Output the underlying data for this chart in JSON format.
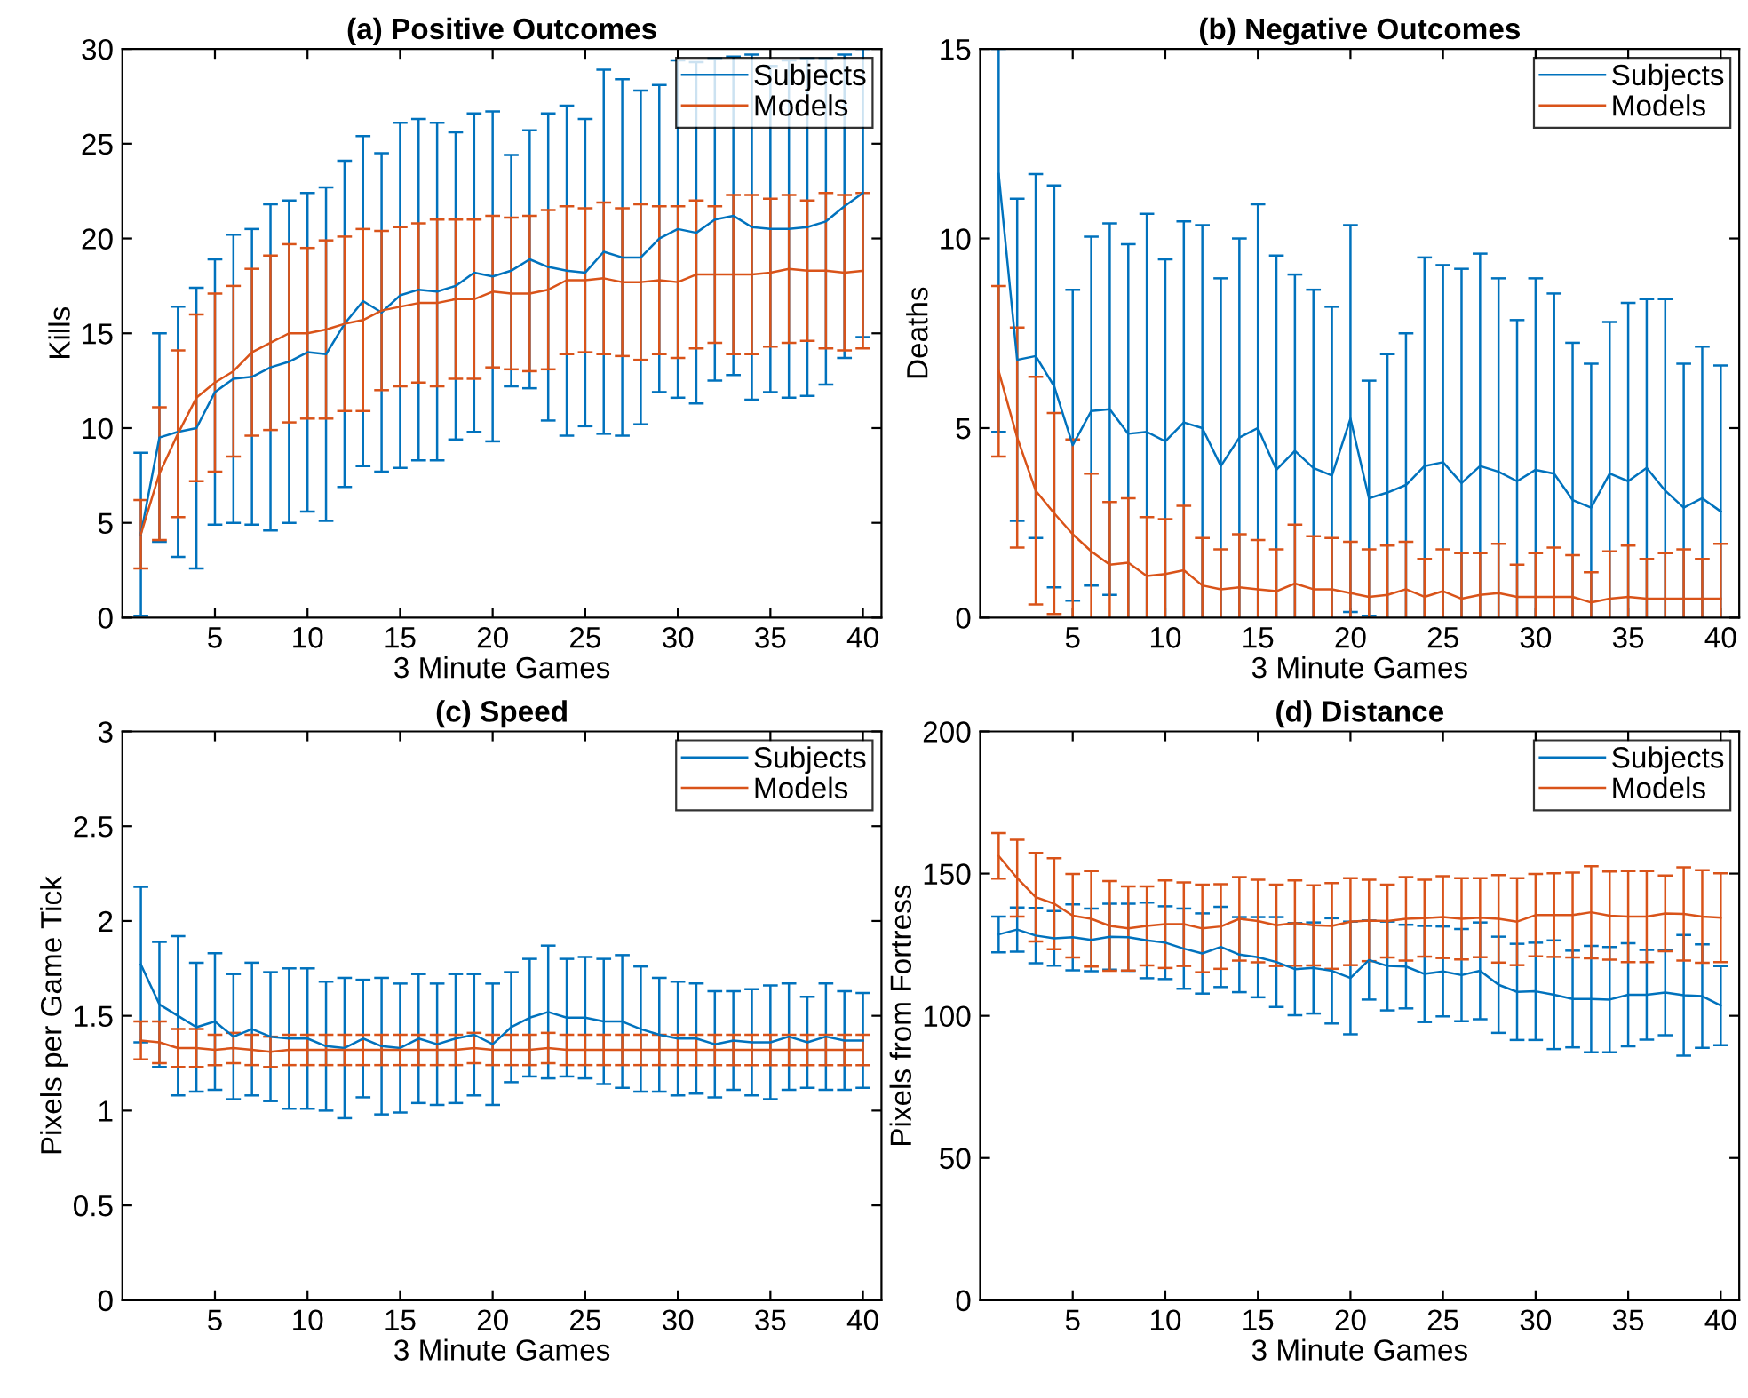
{
  "chart_data": [
    {
      "type": "line",
      "title": "(a) Positive Outcomes",
      "xlabel": "3 Minute Games",
      "ylabel": "Kills",
      "legend": "top right",
      "xlim": [
        0,
        41
      ],
      "xticks": [
        5,
        10,
        15,
        20,
        25,
        30,
        35,
        40
      ],
      "ylim": [
        0,
        30
      ],
      "yticks": [
        0,
        5,
        10,
        15,
        20,
        25,
        30
      ],
      "x": [
        1,
        2,
        3,
        4,
        5,
        6,
        7,
        8,
        9,
        10,
        11,
        12,
        13,
        14,
        15,
        16,
        17,
        18,
        19,
        20,
        21,
        22,
        23,
        24,
        25,
        26,
        27,
        28,
        29,
        30,
        31,
        32,
        33,
        34,
        35,
        36,
        37,
        38,
        39,
        40
      ],
      "series": [
        {
          "name": "Subjects",
          "color": "#0072bd",
          "values": [
            4.4,
            9.5,
            9.8,
            10.0,
            11.9,
            12.6,
            12.7,
            13.2,
            13.5,
            14.0,
            13.9,
            15.5,
            16.7,
            16.1,
            17.0,
            17.3,
            17.2,
            17.5,
            18.2,
            18.0,
            18.3,
            18.9,
            18.5,
            18.3,
            18.2,
            19.3,
            19.0,
            19.0,
            20.0,
            20.5,
            20.3,
            21.0,
            21.2,
            20.6,
            20.5,
            20.5,
            20.6,
            20.9,
            21.7,
            22.4
          ],
          "errors": [
            4.3,
            5.5,
            6.6,
            7.4,
            7.0,
            7.6,
            7.8,
            8.6,
            8.5,
            8.4,
            8.8,
            8.6,
            8.7,
            8.4,
            9.1,
            9.0,
            8.9,
            8.1,
            8.4,
            8.7,
            6.1,
            6.8,
            8.1,
            8.7,
            8.1,
            9.6,
            9.4,
            8.8,
            8.1,
            8.9,
            9.0,
            8.5,
            8.4,
            9.1,
            8.6,
            8.9,
            8.9,
            8.6,
            8.0,
            7.6
          ]
        },
        {
          "name": "Models",
          "color": "#d95319",
          "values": [
            4.4,
            7.6,
            9.7,
            11.6,
            12.4,
            13.0,
            14.0,
            14.5,
            15.0,
            15.0,
            15.2,
            15.5,
            15.7,
            16.2,
            16.4,
            16.6,
            16.6,
            16.8,
            16.8,
            17.2,
            17.1,
            17.1,
            17.3,
            17.8,
            17.8,
            17.9,
            17.7,
            17.7,
            17.8,
            17.7,
            18.1,
            18.1,
            18.1,
            18.1,
            18.2,
            18.4,
            18.3,
            18.3,
            18.2,
            18.3
          ],
          "errors": [
            1.8,
            3.5,
            4.4,
            4.4,
            4.7,
            4.5,
            4.4,
            4.6,
            4.7,
            4.5,
            4.7,
            4.6,
            4.8,
            4.2,
            4.2,
            4.2,
            4.4,
            4.2,
            4.2,
            4.0,
            4.0,
            4.1,
            4.2,
            3.9,
            3.8,
            4.0,
            3.9,
            4.1,
            3.9,
            4.0,
            3.9,
            3.6,
            4.2,
            4.2,
            3.9,
            3.9,
            3.7,
            4.1,
            4.1,
            4.1
          ]
        }
      ]
    },
    {
      "type": "line",
      "title": "(b) Negative Outcomes",
      "xlabel": "3 Minute Games",
      "ylabel": "Deaths",
      "legend": "top right",
      "xlim": [
        0,
        41
      ],
      "xticks": [
        5,
        10,
        15,
        20,
        25,
        30,
        35,
        40
      ],
      "ylim": [
        0,
        15
      ],
      "yticks": [
        0,
        5,
        10,
        15
      ],
      "x": [
        1,
        2,
        3,
        4,
        5,
        6,
        7,
        8,
        9,
        10,
        11,
        12,
        13,
        14,
        15,
        16,
        17,
        18,
        19,
        20,
        21,
        22,
        23,
        24,
        25,
        26,
        27,
        28,
        29,
        30,
        31,
        32,
        33,
        34,
        35,
        36,
        37,
        38,
        39,
        40
      ],
      "series": [
        {
          "name": "Subjects",
          "color": "#0072bd",
          "values": [
            11.7,
            6.8,
            6.9,
            6.1,
            4.55,
            5.45,
            5.5,
            4.85,
            4.9,
            4.65,
            5.15,
            5.0,
            4.0,
            4.75,
            5.0,
            3.9,
            4.4,
            3.95,
            3.75,
            5.25,
            3.15,
            3.3,
            3.5,
            4.0,
            4.1,
            3.55,
            4.0,
            3.85,
            3.6,
            3.9,
            3.8,
            3.1,
            2.9,
            3.8,
            3.6,
            3.95,
            3.35,
            2.9,
            3.15,
            2.8
          ],
          "errors": [
            [
              4.9,
              15
            ],
            4.25,
            4.8,
            5.3,
            4.1,
            4.6,
            4.9,
            5.0,
            5.75,
            4.8,
            5.3,
            5.35,
            4.95,
            5.25,
            5.9,
            5.65,
            4.65,
            4.7,
            4.45,
            5.1,
            3.1,
            3.65,
            4.0,
            5.5,
            5.2,
            5.65,
            5.6,
            5.1,
            4.25,
            5.05,
            4.75,
            4.15,
            3.8,
            4.0,
            4.7,
            4.45,
            5.05,
            3.8,
            4.0,
            3.85
          ]
        },
        {
          "name": "Models",
          "color": "#d95319",
          "values": [
            6.5,
            4.75,
            3.35,
            2.75,
            2.2,
            1.75,
            1.4,
            1.45,
            1.1,
            1.15,
            1.25,
            0.85,
            0.75,
            0.8,
            0.75,
            0.7,
            0.9,
            0.75,
            0.75,
            0.65,
            0.55,
            0.6,
            0.75,
            0.55,
            0.7,
            0.5,
            0.6,
            0.65,
            0.55,
            0.55,
            0.55,
            0.55,
            0.4,
            0.5,
            0.55,
            0.5,
            0.5,
            0.5,
            0.5,
            0.5
          ],
          "errors": [
            2.25,
            2.9,
            3.0,
            2.65,
            2.5,
            2.05,
            1.65,
            1.7,
            1.55,
            1.45,
            1.7,
            1.25,
            1.05,
            1.4,
            1.3,
            1.1,
            1.55,
            1.4,
            1.35,
            1.35,
            1.25,
            1.3,
            1.25,
            1.0,
            1.1,
            1.2,
            1.1,
            1.3,
            0.85,
            1.15,
            1.3,
            1.1,
            0.8,
            1.25,
            1.35,
            1.05,
            1.2,
            1.3,
            1.05,
            1.45
          ]
        }
      ]
    },
    {
      "type": "line",
      "title": "(c) Speed",
      "xlabel": "3 Minute Games",
      "ylabel": "Pixels per Game Tick",
      "legend": "top right",
      "xlim": [
        0,
        41
      ],
      "xticks": [
        5,
        10,
        15,
        20,
        25,
        30,
        35,
        40
      ],
      "ylim": [
        0,
        3
      ],
      "yticks": [
        0,
        0.5,
        1,
        1.5,
        2,
        2.5,
        3
      ],
      "x": [
        1,
        2,
        3,
        4,
        5,
        6,
        7,
        8,
        9,
        10,
        11,
        12,
        13,
        14,
        15,
        16,
        17,
        18,
        19,
        20,
        21,
        22,
        23,
        24,
        25,
        26,
        27,
        28,
        29,
        30,
        31,
        32,
        33,
        34,
        35,
        36,
        37,
        38,
        39,
        40
      ],
      "series": [
        {
          "name": "Subjects",
          "color": "#0072bd",
          "values": [
            1.77,
            1.56,
            1.5,
            1.44,
            1.47,
            1.39,
            1.43,
            1.39,
            1.38,
            1.38,
            1.34,
            1.33,
            1.38,
            1.34,
            1.33,
            1.38,
            1.35,
            1.38,
            1.4,
            1.35,
            1.44,
            1.49,
            1.52,
            1.49,
            1.49,
            1.47,
            1.47,
            1.43,
            1.4,
            1.38,
            1.38,
            1.35,
            1.37,
            1.36,
            1.36,
            1.39,
            1.36,
            1.39,
            1.37,
            1.37
          ],
          "errors": [
            0.41,
            0.33,
            0.42,
            0.34,
            0.36,
            0.33,
            0.35,
            0.34,
            0.37,
            0.37,
            0.34,
            0.37,
            0.31,
            0.36,
            0.34,
            0.34,
            0.32,
            0.34,
            0.32,
            0.32,
            0.29,
            0.31,
            0.35,
            0.31,
            0.32,
            0.33,
            0.35,
            0.33,
            0.3,
            0.3,
            0.29,
            0.28,
            0.26,
            0.28,
            0.3,
            0.28,
            0.24,
            0.28,
            0.26,
            0.25
          ]
        },
        {
          "name": "Models",
          "color": "#d95319",
          "values": [
            1.37,
            1.36,
            1.33,
            1.33,
            1.32,
            1.33,
            1.32,
            1.31,
            1.32,
            1.32,
            1.32,
            1.32,
            1.32,
            1.32,
            1.32,
            1.32,
            1.32,
            1.32,
            1.33,
            1.32,
            1.32,
            1.32,
            1.33,
            1.32,
            1.32,
            1.32,
            1.32,
            1.32,
            1.32,
            1.32,
            1.32,
            1.32,
            1.32,
            1.32,
            1.32,
            1.32,
            1.32,
            1.32,
            1.32,
            1.32
          ],
          "errors": [
            0.1,
            0.11,
            0.1,
            0.1,
            0.08,
            0.08,
            0.08,
            0.08,
            0.08,
            0.08,
            0.08,
            0.08,
            0.08,
            0.08,
            0.08,
            0.08,
            0.08,
            0.08,
            0.08,
            0.08,
            0.08,
            0.08,
            0.08,
            0.08,
            0.08,
            0.08,
            0.08,
            0.08,
            0.08,
            0.08,
            0.08,
            0.08,
            0.08,
            0.08,
            0.08,
            0.08,
            0.08,
            0.08,
            0.08,
            0.08
          ]
        }
      ]
    },
    {
      "type": "line",
      "title": "(d) Distance",
      "xlabel": "3 Minute Games",
      "ylabel": "Pixels from Fortress",
      "legend": "top right",
      "xlim": [
        0,
        41
      ],
      "xticks": [
        5,
        10,
        15,
        20,
        25,
        30,
        35,
        40
      ],
      "ylim": [
        0,
        200
      ],
      "yticks": [
        0,
        50,
        100,
        150,
        200
      ],
      "x": [
        1,
        2,
        3,
        4,
        5,
        6,
        7,
        8,
        9,
        10,
        11,
        12,
        13,
        14,
        15,
        16,
        17,
        18,
        19,
        20,
        21,
        22,
        23,
        24,
        25,
        26,
        27,
        28,
        29,
        30,
        31,
        32,
        33,
        34,
        35,
        36,
        37,
        38,
        39,
        40
      ],
      "series": [
        {
          "name": "Subjects",
          "color": "#0072bd",
          "values": [
            128.6,
            130.3,
            128.2,
            127.2,
            127.6,
            126.7,
            127.8,
            127.6,
            126.5,
            125.7,
            123.6,
            121.9,
            124.2,
            121.5,
            120.6,
            118.9,
            116.4,
            116.8,
            115.8,
            113.3,
            119.6,
            117.5,
            117.3,
            114.7,
            115.6,
            114.3,
            115.8,
            110.9,
            108.4,
            108.6,
            107.4,
            105.9,
            105.9,
            105.7,
            107.4,
            107.4,
            108.2,
            107.2,
            106.9,
            103.6
          ],
          "errors": [
            6.3,
            7.8,
            9.7,
            9.6,
            11.6,
            11.0,
            11.6,
            11.8,
            13.3,
            12.8,
            14.1,
            14.1,
            14.1,
            13.2,
            14.1,
            15.8,
            16.2,
            16.0,
            18.5,
            19.8,
            13.9,
            15.6,
            14.7,
            16.9,
            15.8,
            16.2,
            17.0,
            16.9,
            16.9,
            17.1,
            19.1,
            17.0,
            18.7,
            18.5,
            18.1,
            15.8,
            15.0,
            21.2,
            18.2,
            13.9
          ]
        },
        {
          "name": "Models",
          "color": "#d95319",
          "values": [
            156.2,
            148.4,
            141.7,
            139.4,
            135.2,
            134.1,
            131.6,
            130.7,
            131.6,
            132.2,
            132.2,
            130.7,
            131.4,
            134.1,
            133.3,
            131.8,
            132.6,
            131.8,
            131.6,
            133.1,
            133.5,
            133.3,
            134.1,
            134.3,
            134.7,
            134.1,
            134.5,
            134.1,
            133.1,
            135.4,
            135.4,
            135.4,
            136.4,
            135.2,
            134.9,
            134.9,
            136.0,
            135.8,
            134.9,
            134.5
          ],
          "errors": [
            8.0,
            13.5,
            15.6,
            16.0,
            14.7,
            16.8,
            15.8,
            14.8,
            13.9,
            15.4,
            14.7,
            15.4,
            14.9,
            14.7,
            14.5,
            14.3,
            15.0,
            14.1,
            15.1,
            15.3,
            14.3,
            12.8,
            14.7,
            13.5,
            14.4,
            14.3,
            13.9,
            15.4,
            15.3,
            14.5,
            14.7,
            14.9,
            16.2,
            15.5,
            16.0,
            16.0,
            13.3,
            16.4,
            16.3,
            15.6
          ]
        }
      ]
    }
  ]
}
